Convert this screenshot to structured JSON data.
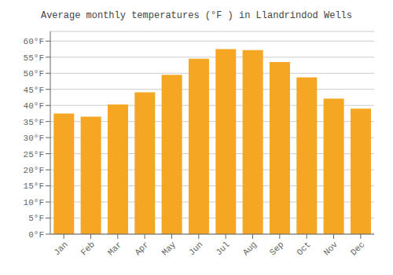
{
  "chart_data": {
    "type": "bar",
    "title": "Average monthly temperatures (°F ) in Llandrindod Wells",
    "categories": [
      "Jan",
      "Feb",
      "Mar",
      "Apr",
      "May",
      "Jun",
      "Jul",
      "Aug",
      "Sep",
      "Oct",
      "Nov",
      "Dec"
    ],
    "values": [
      37.5,
      36.5,
      40.3,
      44.1,
      49.5,
      54.5,
      57.5,
      57.2,
      53.5,
      48.7,
      42.1,
      39.0
    ],
    "color": "#F5A623",
    "ylim": [
      0,
      63
    ],
    "yticks": [
      {
        "value": 0,
        "label": "0°F"
      },
      {
        "value": 5,
        "label": "5°F"
      },
      {
        "value": 10,
        "label": "10°F"
      },
      {
        "value": 15,
        "label": "15°F"
      },
      {
        "value": 20,
        "label": "20°F"
      },
      {
        "value": 25,
        "label": "25°F"
      },
      {
        "value": 30,
        "label": "30°F"
      },
      {
        "value": 35,
        "label": "35°F"
      },
      {
        "value": 40,
        "label": "40°F"
      },
      {
        "value": 45,
        "label": "45°F"
      },
      {
        "value": 50,
        "label": "50°F"
      },
      {
        "value": 55,
        "label": "55°F"
      },
      {
        "value": 60,
        "label": "60°F"
      }
    ],
    "grid": true
  }
}
